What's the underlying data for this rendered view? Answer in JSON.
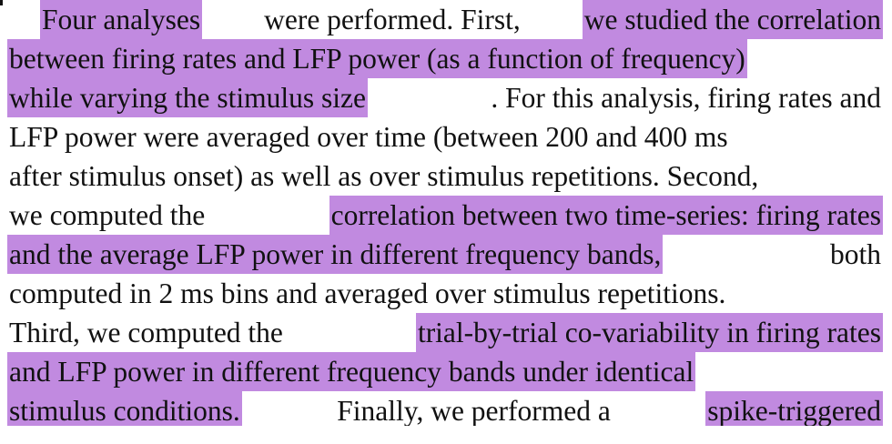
{
  "highlight_color": "#c18ae0",
  "lines": [
    {
      "words": [
        {
          "text": "Four analyses",
          "hl": true
        },
        {
          "text": "were performed. First,",
          "hl": false
        },
        {
          "text": "we studied the correlation",
          "hl": true
        }
      ]
    },
    {
      "words": [
        {
          "text": "between firing rates and LFP power (as a function of frequency)",
          "hl": true
        }
      ]
    },
    {
      "words": [
        {
          "text": "while varying the stimulus size",
          "hl": true
        },
        {
          "text": ". For this analysis, firing rates and",
          "hl": false
        }
      ]
    },
    {
      "words": [
        {
          "text": "LFP power were averaged over time (between 200 and 400 ms",
          "hl": false
        }
      ]
    },
    {
      "words": [
        {
          "text": "after stimulus onset) as well as over stimulus repetitions. Second,",
          "hl": false
        }
      ]
    },
    {
      "words": [
        {
          "text": "we computed the",
          "hl": false
        },
        {
          "text": "correlation between two time-series: firing rates",
          "hl": true
        }
      ]
    },
    {
      "words": [
        {
          "text": "and the average LFP power in different frequency bands,",
          "hl": true
        },
        {
          "text": "both",
          "hl": false
        }
      ]
    },
    {
      "words": [
        {
          "text": "computed in 2 ms bins and averaged over stimulus repetitions.",
          "hl": false
        }
      ]
    },
    {
      "words": [
        {
          "text": "Third, we computed the",
          "hl": false
        },
        {
          "text": "trial-by-trial co-variability in firing rates",
          "hl": true
        }
      ]
    },
    {
      "words": [
        {
          "text": "and LFP power in different frequency bands under identical",
          "hl": true
        }
      ]
    },
    {
      "words": [
        {
          "text": "stimulus conditions.",
          "hl": true
        },
        {
          "text": "Finally, we performed a",
          "hl": false
        },
        {
          "text": "spike-triggered",
          "hl": true
        }
      ]
    }
  ]
}
